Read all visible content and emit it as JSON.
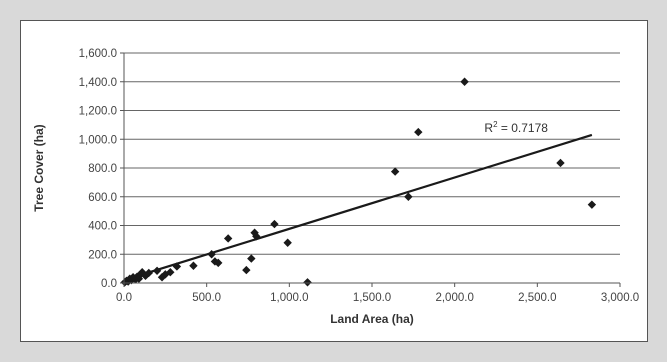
{
  "chart_data": {
    "type": "scatter",
    "xlabel": "Land Area (ha)",
    "ylabel": "Tree Cover (ha)",
    "xlim": [
      0,
      3000
    ],
    "ylim": [
      0,
      1600
    ],
    "x_ticks": [
      0,
      500,
      1000,
      1500,
      2000,
      2500,
      3000
    ],
    "y_ticks": [
      0,
      200,
      400,
      600,
      800,
      1000,
      1200,
      1400,
      1600
    ],
    "x_tick_labels": [
      "0.0",
      "500.0",
      "1,000.0",
      "1,500.0",
      "2,000.0",
      "2,500.0",
      "3,000.0"
    ],
    "y_tick_labels": [
      "0.0",
      "200.0",
      "400.0",
      "600.0",
      "800.0",
      "1,000.0",
      "1,200.0",
      "1,400.0",
      "1,600.0"
    ],
    "grid": "horizontal",
    "legend": "none",
    "marker_color": "#1a1a1a",
    "points": [
      {
        "x": 5,
        "y": 5
      },
      {
        "x": 15,
        "y": 15
      },
      {
        "x": 25,
        "y": 10
      },
      {
        "x": 35,
        "y": 30
      },
      {
        "x": 45,
        "y": 20
      },
      {
        "x": 55,
        "y": 40
      },
      {
        "x": 70,
        "y": 25
      },
      {
        "x": 80,
        "y": 45
      },
      {
        "x": 90,
        "y": 30
      },
      {
        "x": 100,
        "y": 60
      },
      {
        "x": 110,
        "y": 75
      },
      {
        "x": 130,
        "y": 50
      },
      {
        "x": 150,
        "y": 70
      },
      {
        "x": 200,
        "y": 85
      },
      {
        "x": 230,
        "y": 40
      },
      {
        "x": 250,
        "y": 60
      },
      {
        "x": 280,
        "y": 75
      },
      {
        "x": 320,
        "y": 115
      },
      {
        "x": 420,
        "y": 120
      },
      {
        "x": 530,
        "y": 200
      },
      {
        "x": 550,
        "y": 150
      },
      {
        "x": 570,
        "y": 140
      },
      {
        "x": 630,
        "y": 310
      },
      {
        "x": 740,
        "y": 90
      },
      {
        "x": 770,
        "y": 170
      },
      {
        "x": 790,
        "y": 350
      },
      {
        "x": 800,
        "y": 325
      },
      {
        "x": 910,
        "y": 410
      },
      {
        "x": 990,
        "y": 280
      },
      {
        "x": 1110,
        "y": 5
      },
      {
        "x": 1640,
        "y": 775
      },
      {
        "x": 1720,
        "y": 600
      },
      {
        "x": 1780,
        "y": 1050
      },
      {
        "x": 2060,
        "y": 1400
      },
      {
        "x": 2640,
        "y": 835
      },
      {
        "x": 2830,
        "y": 545
      }
    ],
    "trendline": {
      "x": [
        0,
        2830
      ],
      "y": [
        20,
        1030
      ]
    },
    "annotation": {
      "base": "R",
      "sup": "2",
      "rest": " = 0.7178",
      "x": 2180,
      "y": 1050
    }
  }
}
